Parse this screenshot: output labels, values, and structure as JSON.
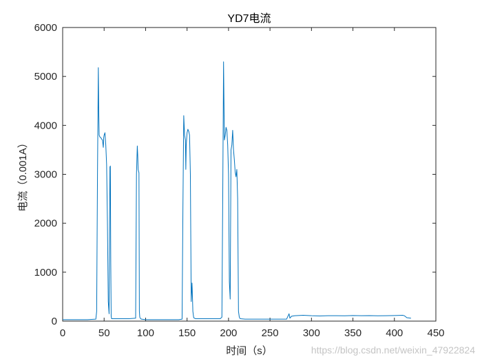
{
  "chart_data": {
    "type": "line",
    "title": "YD7电流",
    "xlabel": "时间（s）",
    "ylabel": "电流（0.001A）",
    "xlim": [
      0,
      450
    ],
    "ylim": [
      0,
      6000
    ],
    "xticks": [
      0,
      50,
      100,
      150,
      200,
      250,
      300,
      350,
      400,
      450
    ],
    "yticks": [
      0,
      1000,
      2000,
      3000,
      4000,
      5000,
      6000
    ],
    "grid": false,
    "colors": {
      "series": "#0072BD",
      "axes": "#262626"
    },
    "series": [
      {
        "x": [
          0,
          10,
          20,
          30,
          40,
          41,
          42,
          43,
          43.5,
          44,
          45,
          46,
          47,
          48,
          49,
          49.5,
          50,
          51,
          52,
          53,
          54,
          55,
          56,
          57,
          57.5,
          58,
          58.5,
          59,
          60,
          70,
          80,
          88,
          89,
          90,
          90.5,
          91,
          92,
          92.5,
          93,
          94,
          95,
          100,
          110,
          120,
          130,
          140,
          144,
          145,
          146,
          147,
          148,
          148.5,
          149,
          150,
          151,
          152,
          153,
          154,
          155,
          156,
          156.5,
          157,
          158,
          160,
          170,
          180,
          190,
          192,
          193,
          194,
          194.5,
          195,
          196,
          197,
          198,
          199,
          200,
          201,
          202,
          203,
          204,
          205,
          206,
          207,
          208,
          209,
          210,
          211,
          212,
          213,
          214,
          220,
          230,
          240,
          250,
          260,
          270,
          273,
          274,
          276,
          280,
          290,
          300,
          310,
          320,
          330,
          340,
          350,
          360,
          370,
          380,
          390,
          400,
          410,
          412,
          415,
          420
        ],
        "y": [
          30,
          30,
          30,
          30,
          40,
          200,
          3000,
          5180,
          4300,
          3800,
          3760,
          3750,
          3720,
          3700,
          3550,
          3750,
          3800,
          3850,
          3600,
          3200,
          2000,
          400,
          150,
          3150,
          3170,
          1200,
          100,
          50,
          50,
          50,
          50,
          60,
          3000,
          3580,
          3400,
          3100,
          3030,
          200,
          80,
          50,
          40,
          30,
          30,
          30,
          30,
          30,
          40,
          2300,
          4200,
          3800,
          3700,
          3100,
          3600,
          3850,
          3920,
          3880,
          3800,
          3000,
          400,
          780,
          500,
          200,
          70,
          50,
          50,
          50,
          50,
          80,
          2500,
          5300,
          4500,
          3700,
          3800,
          3960,
          3900,
          3600,
          3000,
          800,
          450,
          3500,
          3600,
          3900,
          3500,
          3300,
          3050,
          2950,
          3100,
          2500,
          200,
          80,
          50,
          40,
          40,
          40,
          40,
          40,
          40,
          150,
          60,
          100,
          110,
          120,
          110,
          105,
          110,
          110,
          108,
          115,
          110,
          112,
          108,
          110,
          115,
          120,
          110,
          70,
          60
        ]
      }
    ]
  },
  "watermark": "https://blog.csdn.net/weixin_47922824"
}
